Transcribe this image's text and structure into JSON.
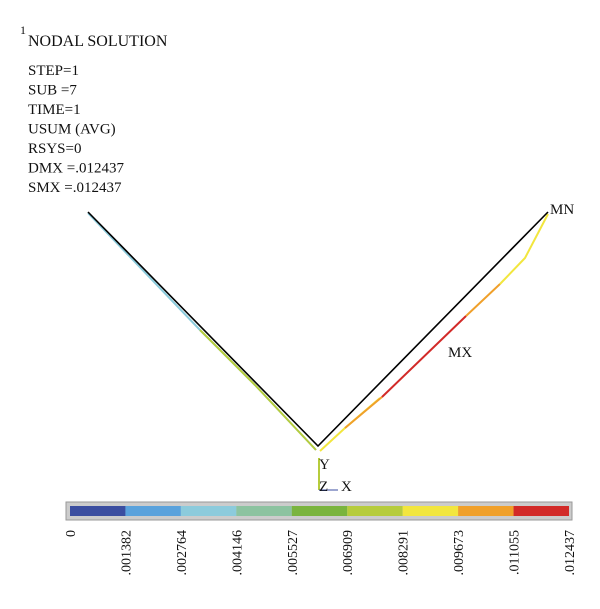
{
  "header": {
    "window_number": "1",
    "title": "NODAL SOLUTION"
  },
  "info": [
    "STEP=1",
    "SUB =7",
    "TIME=1",
    "USUM (AVG)",
    "RSYS=0",
    "DMX =.012437",
    "SMX =.012437"
  ],
  "markers": {
    "min": "MN",
    "max": "MX"
  },
  "triad": {
    "y": "Y",
    "z": "Z",
    "x": "X"
  },
  "legend": {
    "colors": [
      "#3b4ea0",
      "#5aa2dc",
      "#8ccbdc",
      "#8cc3a0",
      "#7ab43e",
      "#b6cc3c",
      "#f2e63e",
      "#f0a02a",
      "#d22a28"
    ],
    "labels": [
      "0",
      ".001382",
      ".002764",
      ".004146",
      ".005527",
      ".006909",
      ".008291",
      ".009673",
      ".011055",
      ".012437"
    ]
  }
}
